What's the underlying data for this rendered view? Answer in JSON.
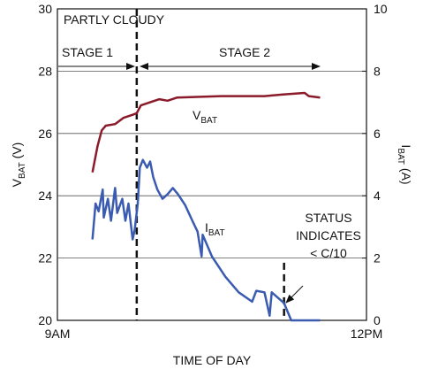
{
  "chart_data": {
    "type": "line",
    "ylabel": [
      "V",
      "BAT",
      " (V)"
    ],
    "y2label": [
      "I",
      "BAT",
      " (A)"
    ],
    "xlabel": "TIME OF DAY",
    "xlim": [
      9,
      12
    ],
    "xticks": [
      {
        "value": 9,
        "label": "9AM"
      },
      {
        "value": 12,
        "label": "12PM"
      }
    ],
    "ylim": [
      20,
      30
    ],
    "yticks": [
      20,
      22,
      24,
      26,
      28,
      30
    ],
    "y2lim": [
      0,
      10
    ],
    "y2ticks": [
      0,
      2,
      4,
      6,
      8,
      10
    ],
    "grid": true,
    "series": [
      {
        "label": [
          "V",
          "BAT"
        ],
        "color": "#8b1a2b",
        "x": [
          9.34,
          9.39,
          9.43,
          9.47,
          9.56,
          9.64,
          9.73,
          9.77,
          9.81,
          9.9,
          9.99,
          10.07,
          10.16,
          10.59,
          11.01,
          11.19,
          11.4,
          11.44,
          11.55
        ],
        "values": [
          24.75,
          25.6,
          26.1,
          26.25,
          26.3,
          26.5,
          26.6,
          26.65,
          26.9,
          27.0,
          27.1,
          27.05,
          27.15,
          27.2,
          27.2,
          27.25,
          27.3,
          27.2,
          27.15
        ]
      },
      {
        "label": [
          "I",
          "BAT"
        ],
        "color": "#3a5bb0",
        "axis": "y2",
        "x": [
          9.34,
          9.37,
          9.4,
          9.44,
          9.45,
          9.49,
          9.52,
          9.56,
          9.58,
          9.63,
          9.66,
          9.69,
          9.73,
          9.75,
          9.78,
          9.8,
          9.83,
          9.87,
          9.9,
          9.93,
          9.97,
          10.02,
          10.07,
          10.12,
          10.17,
          10.24,
          10.31,
          10.36,
          10.4,
          10.41,
          10.5,
          10.63,
          10.76,
          10.89,
          10.93,
          11.01,
          11.06,
          11.08,
          11.2,
          11.27,
          11.55
        ],
        "values": [
          2.6,
          3.75,
          3.5,
          4.2,
          3.3,
          3.9,
          3.2,
          4.25,
          3.45,
          3.9,
          3.2,
          3.75,
          2.6,
          2.9,
          3.75,
          4.9,
          5.15,
          4.9,
          5.1,
          4.6,
          4.2,
          3.9,
          4.05,
          4.25,
          4.05,
          3.7,
          3.2,
          2.85,
          2.05,
          2.75,
          2.05,
          1.4,
          0.9,
          0.6,
          0.95,
          0.9,
          0.15,
          0.9,
          0.55,
          0,
          0
        ]
      }
    ],
    "annotations": {
      "condition": "PARTLY CLOUDY",
      "stage1": "STAGE 1",
      "stage2": "STAGE 2",
      "status": [
        "STATUS",
        "INDICATES",
        "< C/10"
      ],
      "stage_boundary": 9.77,
      "status_marker": {
        "x": 11.2,
        "top": 1.85
      }
    }
  }
}
